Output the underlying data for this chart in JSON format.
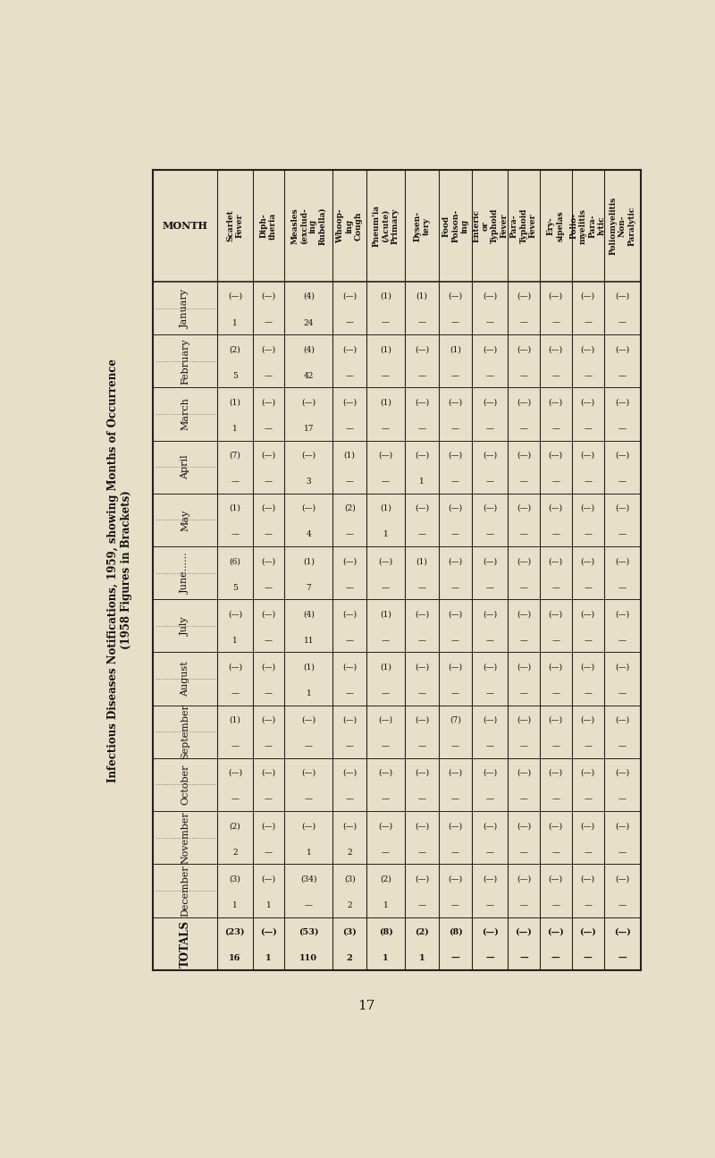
{
  "title_left": "Infectious Diseases Notifications, 1959, showing Months of Occurrence",
  "subtitle_left": "(1958 Figures in Brackets)",
  "background_color": "#e8dfc8",
  "text_color": "#111111",
  "columns": [
    "MONTH",
    "Scarlet\nFever",
    "Diph-\ntheria",
    "Measles\n(exclud-\ning\nRubella)",
    "Whoop-\ning\nCough",
    "Pneum'ia\n(Acute)\nPrimary",
    "Dysen-\ntery",
    "Food\nPoison-\ning",
    "Enteric\nor\nTyphoid\nFever",
    "Para-\nTyphoid\nFever",
    "Ery-\nsipelas",
    "Polio-\nmyelitis\nPara-\nlytic",
    "Poliomyelitis\nNon-\nParalytic"
  ],
  "months": [
    "January",
    "February",
    "March",
    "April",
    "May",
    "June......",
    "July",
    "August",
    "September",
    "October",
    "November",
    "December",
    "TOTALS"
  ],
  "col_widths_rel": [
    2.0,
    1.1,
    1.0,
    1.5,
    1.05,
    1.2,
    1.05,
    1.05,
    1.1,
    1.0,
    1.0,
    1.0,
    1.15
  ],
  "cell_data": {
    "Scarlet\nFever": {
      "top": [
        "(—)",
        "(2)",
        "(1)",
        "(7)",
        "(1)",
        "(6)",
        "(—)",
        "(—)",
        "(1)",
        "(—)",
        "(2)",
        "(3)",
        "(23)"
      ],
      "bottom": [
        "1",
        "5",
        "1",
        "—",
        "—",
        "5",
        "1",
        "—",
        "—",
        "—",
        "2",
        "1",
        "16"
      ]
    },
    "Diph-\ntheria": {
      "top": [
        "(—)",
        "(—)",
        "(—)",
        "(—)",
        "(—)",
        "(—)",
        "(—)",
        "(—)",
        "(—)",
        "(—)",
        "(—)",
        "(—)",
        "(—)"
      ],
      "bottom": [
        "—",
        "—",
        "—",
        "—",
        "—",
        "—",
        "—",
        "—",
        "—",
        "—",
        "—",
        "1",
        "1"
      ]
    },
    "Measles\n(exclud-\ning\nRubella)": {
      "top": [
        "(4)",
        "(4)",
        "(—)",
        "(—)",
        "(—)",
        "(1)",
        "(4)",
        "(1)",
        "(—)",
        "(—)",
        "(—)",
        "(34)",
        "(53)"
      ],
      "bottom": [
        "24",
        "42",
        "17",
        "3",
        "4",
        "7",
        "11",
        "1",
        "—",
        "—",
        "1",
        "—",
        "110"
      ]
    },
    "Whoop-\ning\nCough": {
      "top": [
        "(—)",
        "(—)",
        "(—)",
        "(1)",
        "(2)",
        "(—)",
        "(—)",
        "(—)",
        "(—)",
        "(—)",
        "(—)",
        "(3)",
        "(3)"
      ],
      "bottom": [
        "—",
        "—",
        "—",
        "—",
        "—",
        "—",
        "—",
        "—",
        "—",
        "—",
        "2",
        "2",
        "2"
      ]
    },
    "Pneum'ia\n(Acute)\nPrimary": {
      "top": [
        "(1)",
        "(1)",
        "(1)",
        "(—)",
        "(1)",
        "(—)",
        "(1)",
        "(1)",
        "(—)",
        "(—)",
        "(—)",
        "(2)",
        "(8)"
      ],
      "bottom": [
        "—",
        "—",
        "—",
        "—",
        "1",
        "—",
        "—",
        "—",
        "—",
        "—",
        "—",
        "1",
        "1"
      ]
    },
    "Dysen-\ntery": {
      "top": [
        "(1)",
        "(—)",
        "(—)",
        "(—)",
        "(—)",
        "(1)",
        "(—)",
        "(—)",
        "(—)",
        "(—)",
        "(—)",
        "(—)",
        "(2)"
      ],
      "bottom": [
        "—",
        "—",
        "—",
        "1",
        "—",
        "—",
        "—",
        "—",
        "—",
        "—",
        "—",
        "—",
        "1"
      ]
    },
    "Food\nPoison-\ning": {
      "top": [
        "(—)",
        "(1)",
        "(—)",
        "(—)",
        "(—)",
        "(—)",
        "(—)",
        "(—)",
        "(7)",
        "(—)",
        "(—)",
        "(—)",
        "(8)"
      ],
      "bottom": [
        "—",
        "—",
        "—",
        "—",
        "—",
        "—",
        "—",
        "—",
        "—",
        "—",
        "—",
        "—",
        "—"
      ]
    },
    "Enteric\nor\nTyphoid\nFever": {
      "top": [
        "(—)",
        "(—)",
        "(—)",
        "(—)",
        "(—)",
        "(—)",
        "(—)",
        "(—)",
        "(—)",
        "(—)",
        "(—)",
        "(—)",
        "(—)"
      ],
      "bottom": [
        "—",
        "—",
        "—",
        "—",
        "—",
        "—",
        "—",
        "—",
        "—",
        "—",
        "—",
        "—",
        "—"
      ]
    },
    "Para-\nTyphoid\nFever": {
      "top": [
        "(—)",
        "(—)",
        "(—)",
        "(—)",
        "(—)",
        "(—)",
        "(—)",
        "(—)",
        "(—)",
        "(—)",
        "(—)",
        "(—)",
        "(—)"
      ],
      "bottom": [
        "—",
        "—",
        "—",
        "—",
        "—",
        "—",
        "—",
        "—",
        "—",
        "—",
        "—",
        "—",
        "—"
      ]
    },
    "Ery-\nsipelas": {
      "top": [
        "(—)",
        "(—)",
        "(—)",
        "(—)",
        "(—)",
        "(—)",
        "(—)",
        "(—)",
        "(—)",
        "(—)",
        "(—)",
        "(—)",
        "(—)"
      ],
      "bottom": [
        "—",
        "—",
        "—",
        "—",
        "—",
        "—",
        "—",
        "—",
        "—",
        "—",
        "—",
        "—",
        "—"
      ]
    },
    "Polio-\nmyelitis\nPara-\nlytic": {
      "top": [
        "(—)",
        "(—)",
        "(—)",
        "(—)",
        "(—)",
        "(—)",
        "(—)",
        "(—)",
        "(—)",
        "(—)",
        "(—)",
        "(—)",
        "(—)"
      ],
      "bottom": [
        "—",
        "—",
        "—",
        "—",
        "—",
        "—",
        "—",
        "—",
        "—",
        "—",
        "—",
        "—",
        "—"
      ]
    },
    "Poliomyelitis\nNon-\nParalytic": {
      "top": [
        "(—)",
        "(—)",
        "(—)",
        "(—)",
        "(—)",
        "(—)",
        "(—)",
        "(—)",
        "(—)",
        "(—)",
        "(—)",
        "(—)",
        "(—)"
      ],
      "bottom": [
        "—",
        "—",
        "—",
        "—",
        "—",
        "—",
        "—",
        "—",
        "—",
        "—",
        "—",
        "—",
        "—"
      ]
    }
  },
  "page_number": "17"
}
